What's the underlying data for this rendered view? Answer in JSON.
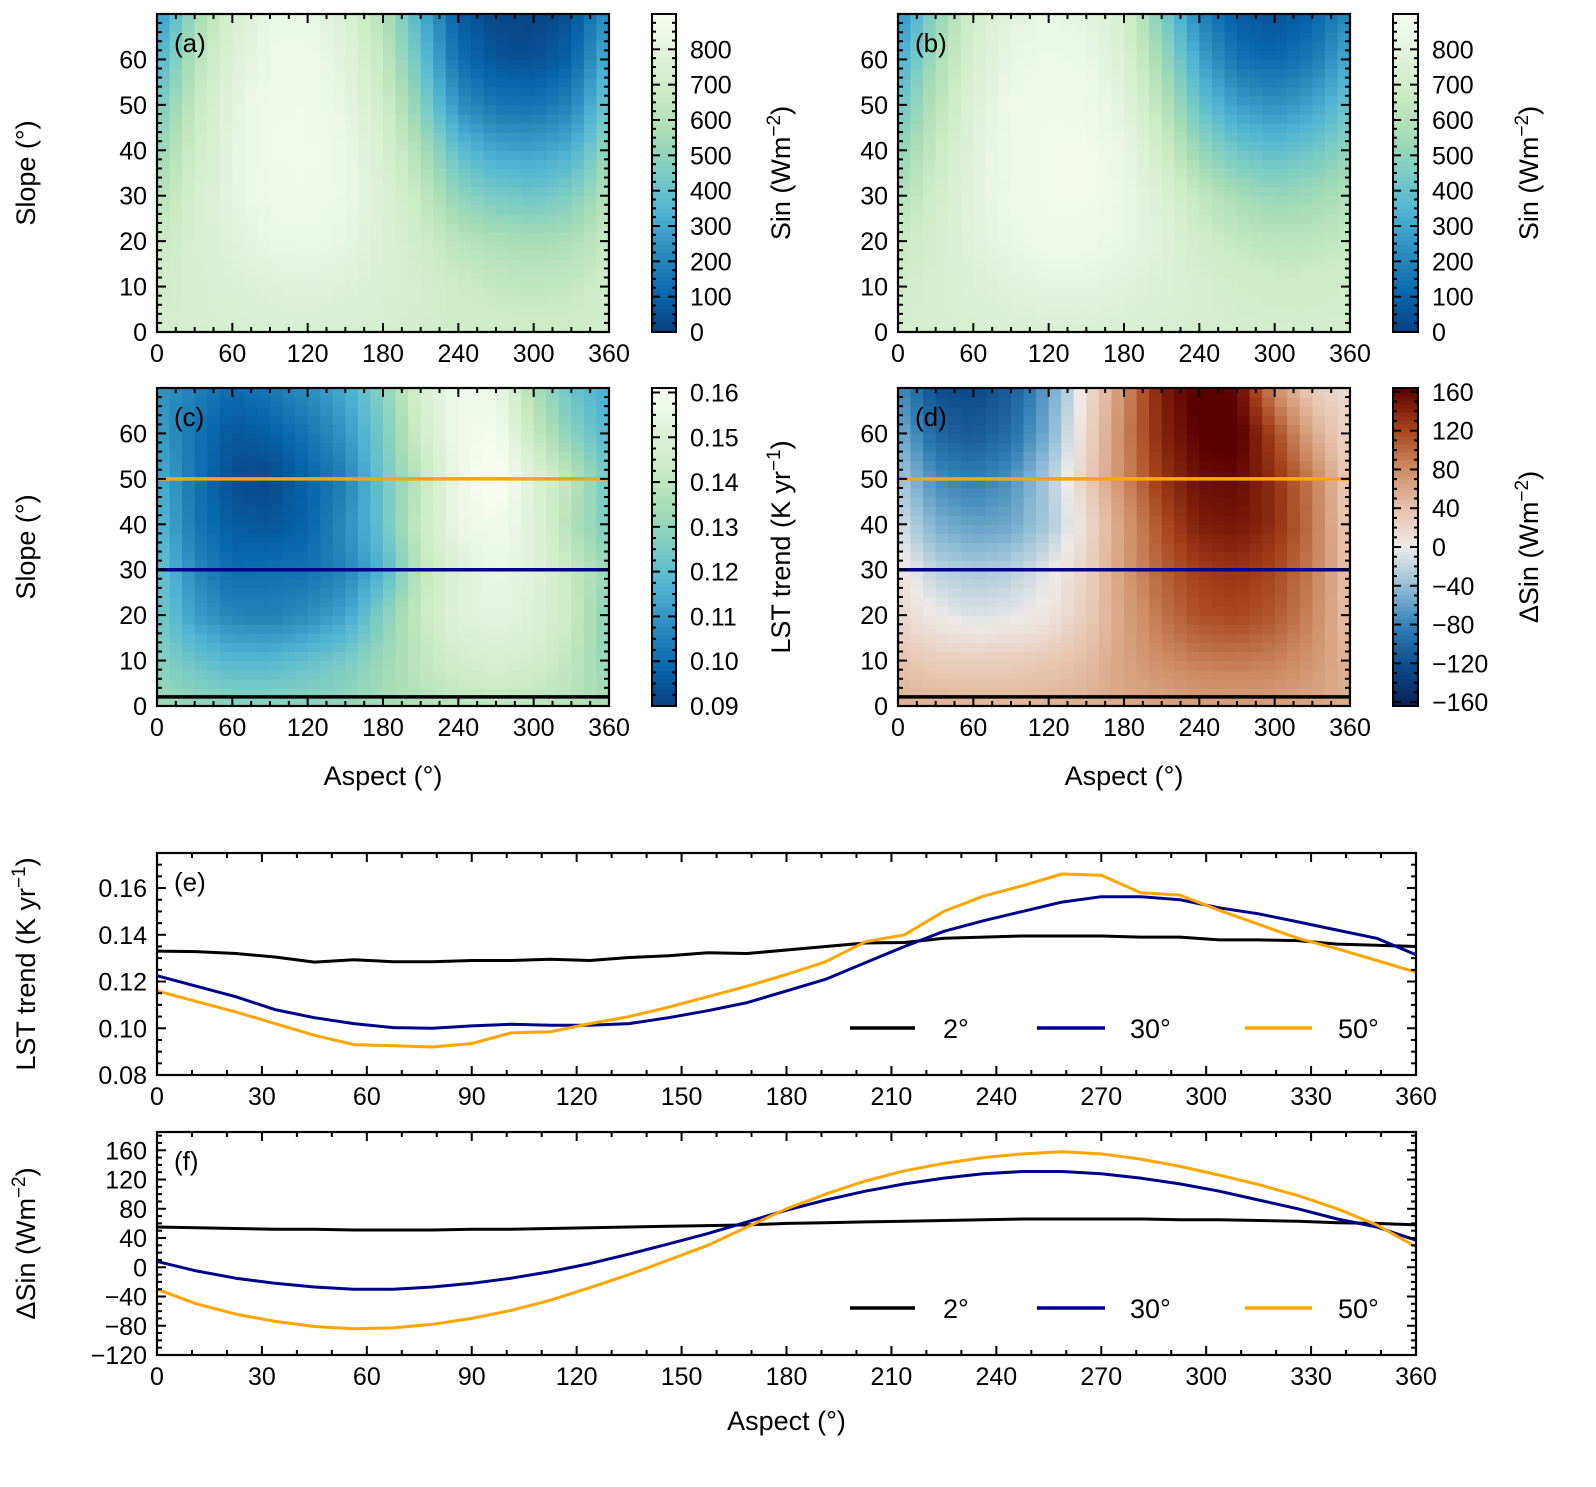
{
  "chart_data": [
    {
      "id": "a",
      "type": "heatmap",
      "panel_label": "(a)",
      "xlabel": "",
      "ylabel": {
        "base": "Slope (°)",
        "sup": "",
        "tail": ""
      },
      "cbar_label": {
        "base": "Sin (Wm",
        "sup": "−2",
        "tail": ")"
      },
      "xlim": [
        0,
        360
      ],
      "ylim": [
        0,
        70
      ],
      "vlim": [
        0,
        900
      ],
      "xticks": [
        0,
        60,
        120,
        180,
        240,
        300,
        360
      ],
      "yticks": [
        0,
        10,
        20,
        30,
        40,
        50,
        60
      ],
      "cticks": [
        0,
        100,
        200,
        300,
        400,
        500,
        600,
        700,
        800
      ],
      "colormap": "GnBu_r",
      "grid_aspect": [
        0,
        30,
        60,
        90,
        120,
        150,
        180,
        210,
        240,
        270,
        300,
        330,
        360
      ],
      "grid_slope": [
        0,
        10,
        20,
        30,
        40,
        50,
        60,
        70
      ],
      "values": [
        [
          720,
          720,
          730,
          740,
          740,
          730,
          720,
          710,
          700,
          700,
          690,
          690,
          720
        ],
        [
          700,
          730,
          760,
          780,
          790,
          780,
          750,
          720,
          680,
          650,
          640,
          650,
          700
        ],
        [
          660,
          730,
          790,
          830,
          840,
          820,
          760,
          690,
          620,
          580,
          560,
          580,
          660
        ],
        [
          600,
          720,
          810,
          860,
          870,
          840,
          760,
          650,
          500,
          440,
          420,
          460,
          600
        ],
        [
          520,
          690,
          810,
          870,
          880,
          840,
          740,
          580,
          380,
          300,
          290,
          330,
          520
        ],
        [
          430,
          650,
          800,
          870,
          870,
          820,
          700,
          480,
          240,
          160,
          150,
          200,
          430
        ],
        [
          340,
          600,
          770,
          850,
          860,
          790,
          650,
          400,
          140,
          60,
          50,
          100,
          340
        ],
        [
          250,
          540,
          740,
          830,
          840,
          760,
          600,
          330,
          80,
          20,
          10,
          50,
          250
        ]
      ]
    },
    {
      "id": "b",
      "type": "heatmap",
      "panel_label": "(b)",
      "xlabel": "",
      "ylabel": {
        "base": "",
        "sup": "",
        "tail": ""
      },
      "cbar_label": {
        "base": "Sin (Wm",
        "sup": "−2",
        "tail": ")"
      },
      "xlim": [
        0,
        360
      ],
      "ylim": [
        0,
        70
      ],
      "vlim": [
        0,
        900
      ],
      "xticks": [
        0,
        60,
        120,
        180,
        240,
        300,
        360
      ],
      "yticks": [
        0,
        10,
        20,
        30,
        40,
        50,
        60
      ],
      "cticks": [
        0,
        100,
        200,
        300,
        400,
        500,
        600,
        700,
        800
      ],
      "colormap": "GnBu_r",
      "grid_aspect": [
        0,
        30,
        60,
        90,
        120,
        150,
        180,
        210,
        240,
        270,
        300,
        330,
        360
      ],
      "grid_slope": [
        0,
        10,
        20,
        30,
        40,
        50,
        60,
        70
      ],
      "values": [
        [
          720,
          730,
          740,
          750,
          755,
          755,
          750,
          740,
          730,
          720,
          715,
          715,
          720
        ],
        [
          700,
          730,
          760,
          790,
          810,
          810,
          790,
          760,
          730,
          700,
          690,
          690,
          700
        ],
        [
          660,
          720,
          790,
          830,
          860,
          860,
          830,
          780,
          700,
          650,
          620,
          630,
          660
        ],
        [
          590,
          700,
          800,
          850,
          880,
          880,
          840,
          760,
          640,
          560,
          520,
          540,
          590
        ],
        [
          500,
          660,
          790,
          860,
          880,
          880,
          830,
          700,
          520,
          420,
          380,
          420,
          500
        ],
        [
          410,
          610,
          770,
          850,
          870,
          860,
          800,
          620,
          400,
          280,
          240,
          290,
          410
        ],
        [
          320,
          560,
          740,
          830,
          850,
          840,
          760,
          540,
          300,
          150,
          120,
          170,
          320
        ],
        [
          220,
          500,
          710,
          800,
          830,
          810,
          720,
          460,
          200,
          80,
          50,
          100,
          220
        ]
      ]
    },
    {
      "id": "c",
      "type": "heatmap",
      "panel_label": "(c)",
      "xlabel": "Aspect (°)",
      "ylabel": {
        "base": "Slope (°)",
        "sup": "",
        "tail": ""
      },
      "cbar_label": {
        "base": "LST trend (K yr",
        "sup": "−1",
        "tail": ")"
      },
      "xlim": [
        0,
        360
      ],
      "ylim": [
        0,
        70
      ],
      "vlim": [
        0.09,
        0.161
      ],
      "xticks": [
        0,
        60,
        120,
        180,
        240,
        300,
        360
      ],
      "yticks": [
        0,
        10,
        20,
        30,
        40,
        50,
        60
      ],
      "cticks": [
        0.09,
        0.1,
        0.11,
        0.12,
        0.13,
        0.14,
        0.15,
        0.16
      ],
      "colormap": "GnBu_r",
      "hlines": [
        {
          "slope": 2,
          "color": "#000000"
        },
        {
          "slope": 30,
          "color": "#00008b"
        },
        {
          "slope": 50,
          "color": "#ffa500"
        }
      ],
      "grid_aspect": [
        0,
        30,
        60,
        90,
        120,
        150,
        180,
        210,
        240,
        270,
        300,
        330,
        360
      ],
      "grid_slope": [
        0,
        10,
        20,
        30,
        40,
        50,
        60,
        70
      ],
      "values": [
        [
          0.133,
          0.131,
          0.129,
          0.129,
          0.129,
          0.131,
          0.134,
          0.137,
          0.139,
          0.14,
          0.139,
          0.138,
          0.135
        ],
        [
          0.128,
          0.122,
          0.118,
          0.118,
          0.121,
          0.125,
          0.132,
          0.14,
          0.146,
          0.148,
          0.146,
          0.14,
          0.13
        ],
        [
          0.125,
          0.112,
          0.106,
          0.105,
          0.108,
          0.113,
          0.127,
          0.142,
          0.152,
          0.154,
          0.151,
          0.143,
          0.128
        ],
        [
          0.1225,
          0.107,
          0.1,
          0.101,
          0.1013,
          0.106,
          0.117,
          0.14,
          0.151,
          0.156,
          0.152,
          0.142,
          0.1315
        ],
        [
          0.119,
          0.103,
          0.096,
          0.095,
          0.098,
          0.108,
          0.122,
          0.143,
          0.156,
          0.159,
          0.152,
          0.137,
          0.125
        ],
        [
          0.116,
          0.102,
          0.093,
          0.092,
          0.098,
          0.105,
          0.123,
          0.14,
          0.157,
          0.165,
          0.15,
          0.139,
          0.124
        ],
        [
          0.112,
          0.102,
          0.095,
          0.097,
          0.102,
          0.11,
          0.125,
          0.145,
          0.158,
          0.16,
          0.142,
          0.128,
          0.118
        ],
        [
          0.11,
          0.105,
          0.1,
          0.103,
          0.108,
          0.115,
          0.128,
          0.148,
          0.158,
          0.157,
          0.135,
          0.122,
          0.115
        ]
      ]
    },
    {
      "id": "d",
      "type": "heatmap",
      "panel_label": "(d)",
      "xlabel": "Aspect (°)",
      "ylabel": {
        "base": "",
        "sup": "",
        "tail": ""
      },
      "cbar_label": {
        "base": "ΔSin (Wm",
        "sup": "−2",
        "tail": ")"
      },
      "xlim": [
        0,
        360
      ],
      "ylim": [
        0,
        70
      ],
      "vlim": [
        -164,
        164
      ],
      "xticks": [
        0,
        60,
        120,
        180,
        240,
        300,
        360
      ],
      "yticks": [
        0,
        10,
        20,
        30,
        40,
        50,
        60
      ],
      "cticks": [
        -160,
        -120,
        -80,
        -40,
        0,
        40,
        80,
        120,
        160
      ],
      "colormap": "balance",
      "hlines": [
        {
          "slope": 2,
          "color": "#000000"
        },
        {
          "slope": 30,
          "color": "#00008b"
        },
        {
          "slope": 50,
          "color": "#ffa500"
        }
      ],
      "grid_aspect": [
        0,
        30,
        60,
        90,
        120,
        150,
        180,
        210,
        240,
        270,
        300,
        330,
        360
      ],
      "grid_slope": [
        0,
        10,
        20,
        30,
        40,
        50,
        60,
        70
      ],
      "values": [
        [
          55,
          53,
          52,
          52,
          53,
          55,
          60,
          63,
          66,
          67,
          66,
          62,
          58
        ],
        [
          40,
          30,
          28,
          30,
          35,
          45,
          65,
          80,
          90,
          92,
          88,
          75,
          50
        ],
        [
          20,
          0,
          -8,
          -5,
          5,
          30,
          65,
          95,
          115,
          120,
          110,
          85,
          40
        ],
        [
          8,
          -22,
          -30,
          -25,
          -5,
          25,
          70,
          105,
          125,
          131,
          120,
          90,
          37
        ],
        [
          -10,
          -50,
          -60,
          -55,
          -30,
          15,
          70,
          115,
          145,
          150,
          135,
          95,
          30
        ],
        [
          -30,
          -73,
          -83,
          -70,
          -28,
          30,
          82,
          130,
          155,
          158,
          134,
          90,
          28
        ],
        [
          -50,
          -100,
          -110,
          -95,
          -50,
          20,
          85,
          140,
          165,
          170,
          120,
          60,
          20
        ],
        [
          -70,
          -120,
          -125,
          -110,
          -60,
          10,
          80,
          145,
          170,
          160,
          80,
          30,
          15
        ]
      ]
    },
    {
      "id": "e",
      "type": "line",
      "panel_label": "(e)",
      "xlabel": "",
      "ylabel": {
        "base": "LST trend (K yr",
        "sup": "−1",
        "tail": ")"
      },
      "xlim": [
        0,
        360
      ],
      "ylim": [
        0.08,
        0.175
      ],
      "xticks": [
        0,
        30,
        60,
        90,
        120,
        150,
        180,
        210,
        240,
        270,
        300,
        330,
        360
      ],
      "yticks": [
        0.08,
        0.1,
        0.12,
        0.14,
        0.16
      ],
      "legend_position": "lower-right",
      "x": [
        0,
        11.25,
        22.5,
        33.75,
        45,
        56.25,
        67.5,
        78.75,
        90,
        101.25,
        112.5,
        123.75,
        135,
        146.25,
        157.5,
        168.75,
        180,
        191.25,
        202.5,
        213.75,
        225,
        236.25,
        247.5,
        258.75,
        270,
        281.25,
        292.5,
        303.75,
        315,
        326.25,
        337.5,
        348.75,
        360
      ],
      "series": [
        {
          "name": "2°",
          "color": "#000000",
          "values": [
            0.133,
            0.1328,
            0.132,
            0.1305,
            0.1283,
            0.1293,
            0.1285,
            0.1285,
            0.129,
            0.129,
            0.1295,
            0.129,
            0.1303,
            0.131,
            0.1323,
            0.132,
            0.1335,
            0.135,
            0.1365,
            0.1367,
            0.1385,
            0.139,
            0.1395,
            0.1395,
            0.1395,
            0.139,
            0.139,
            0.1378,
            0.1378,
            0.1375,
            0.136,
            0.1355,
            0.135
          ]
        },
        {
          "name": "30°",
          "color": "#00008b",
          "values": [
            0.1225,
            0.118,
            0.1135,
            0.108,
            0.1045,
            0.102,
            0.1003,
            0.1,
            0.101,
            0.1017,
            0.1013,
            0.1013,
            0.102,
            0.1045,
            0.1075,
            0.111,
            0.116,
            0.121,
            0.128,
            0.135,
            0.1415,
            0.146,
            0.15,
            0.154,
            0.1563,
            0.1563,
            0.155,
            0.1515,
            0.149,
            0.1455,
            0.142,
            0.1385,
            0.1315
          ]
        },
        {
          "name": "50°",
          "color": "#ffa500",
          "values": [
            0.116,
            0.1115,
            0.107,
            0.102,
            0.097,
            0.093,
            0.0925,
            0.092,
            0.0935,
            0.098,
            0.0985,
            0.102,
            0.105,
            0.109,
            0.1135,
            0.118,
            0.123,
            0.1285,
            0.137,
            0.14,
            0.15,
            0.1565,
            0.161,
            0.166,
            0.1655,
            0.158,
            0.157,
            0.1505,
            0.1445,
            0.1385,
            0.134,
            0.129,
            0.124
          ]
        }
      ]
    },
    {
      "id": "f",
      "type": "line",
      "panel_label": "(f)",
      "xlabel": "Aspect (°)",
      "ylabel": {
        "base": "ΔSin (Wm",
        "sup": "−2",
        "tail": ")"
      },
      "xlim": [
        0,
        360
      ],
      "ylim": [
        -120,
        185
      ],
      "xticks": [
        0,
        30,
        60,
        90,
        120,
        150,
        180,
        210,
        240,
        270,
        300,
        330,
        360
      ],
      "yticks": [
        -120,
        -80,
        -40,
        0,
        40,
        80,
        120,
        160
      ],
      "legend_position": "lower-right",
      "x": [
        0,
        11.25,
        22.5,
        33.75,
        45,
        56.25,
        67.5,
        78.75,
        90,
        101.25,
        112.5,
        123.75,
        135,
        146.25,
        157.5,
        168.75,
        180,
        191.25,
        202.5,
        213.75,
        225,
        236.25,
        247.5,
        258.75,
        270,
        281.25,
        292.5,
        303.75,
        315,
        326.25,
        337.5,
        348.75,
        360
      ],
      "series": [
        {
          "name": "2°",
          "color": "#000000",
          "values": [
            55,
            54,
            53,
            52,
            52,
            51,
            51,
            51,
            52,
            52,
            53,
            54,
            55,
            56,
            57,
            58,
            60,
            61,
            62,
            63,
            64,
            65,
            66,
            66,
            66,
            66,
            65,
            65,
            64,
            63,
            61,
            60,
            58
          ]
        },
        {
          "name": "30°",
          "color": "#00008b",
          "values": [
            8,
            -5,
            -15,
            -22,
            -27,
            -30,
            -30,
            -27,
            -22,
            -15,
            -6,
            5,
            18,
            32,
            46,
            62,
            78,
            92,
            104,
            114,
            122,
            128,
            131,
            131,
            128,
            122,
            114,
            104,
            92,
            80,
            66,
            55,
            37
          ]
        },
        {
          "name": "50°",
          "color": "#ffa500",
          "values": [
            -30,
            -50,
            -64,
            -74,
            -81,
            -84,
            -83,
            -78,
            -70,
            -59,
            -45,
            -28,
            -10,
            10,
            30,
            55,
            80,
            100,
            118,
            132,
            142,
            150,
            155,
            158,
            155,
            148,
            138,
            126,
            113,
            98,
            80,
            58,
            28
          ]
        }
      ]
    }
  ],
  "colormaps": {
    "GnBu_r": [
      "#084081",
      "#0868ac",
      "#2b8cbe",
      "#4eb3d3",
      "#7bccc4",
      "#a8ddb5",
      "#ccebc5",
      "#e0f3db",
      "#f7fcf0"
    ],
    "balance": [
      "#0a1e55",
      "#0c4a8a",
      "#2f7fb5",
      "#8fbcd6",
      "#eeeae8",
      "#e6c2ac",
      "#cd8b62",
      "#a5401a",
      "#5a0000"
    ]
  }
}
